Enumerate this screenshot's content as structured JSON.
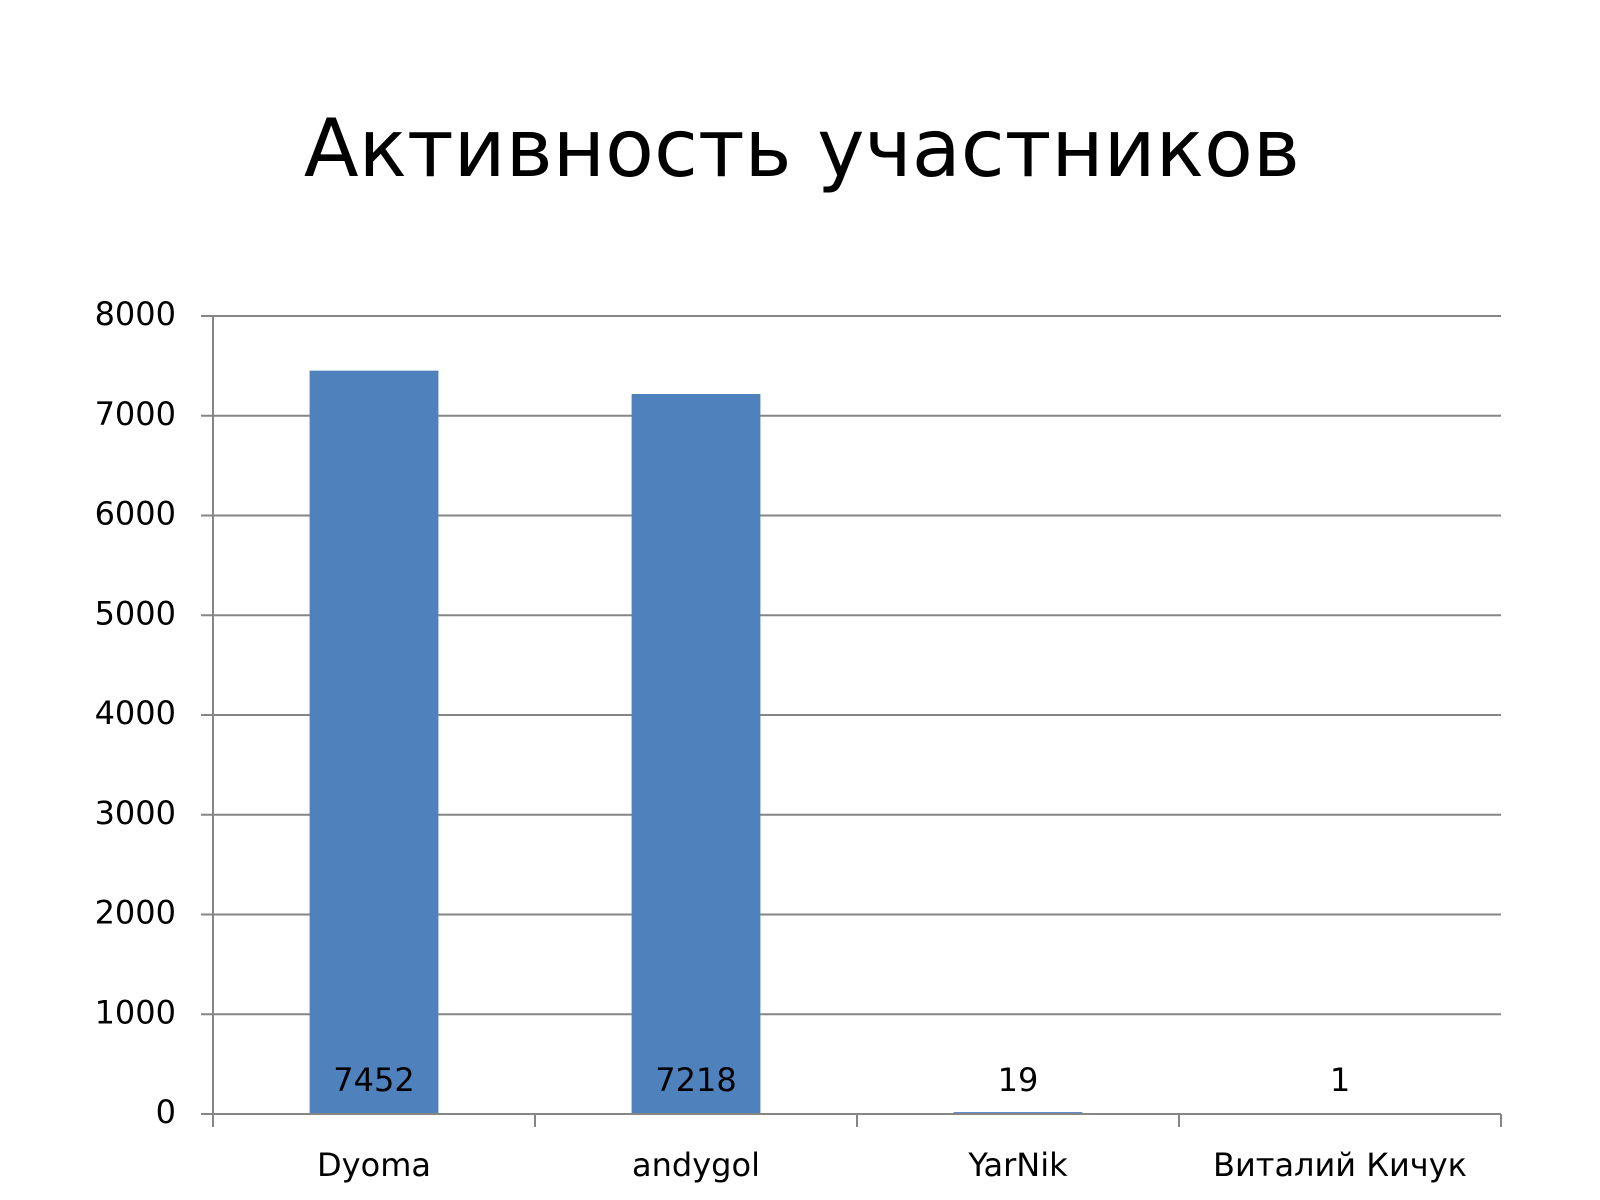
{
  "chart_data": {
    "type": "bar",
    "title": "Активность участников",
    "categories": [
      "Dyoma",
      "andygol",
      "YarNik",
      "Виталий Кичук"
    ],
    "values": [
      7452,
      7218,
      19,
      1
    ],
    "color": "#4f81bd",
    "ylim": [
      0,
      8000
    ],
    "yticks": [
      0,
      1000,
      2000,
      3000,
      4000,
      5000,
      6000,
      7000,
      8000
    ],
    "grid": true,
    "data_labels": true
  }
}
